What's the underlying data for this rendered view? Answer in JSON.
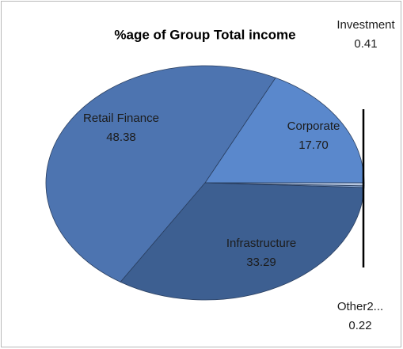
{
  "chart_data": {
    "type": "pie",
    "title": "%age of Group Total income",
    "categories": [
      "Corporate",
      "Retail Finance",
      "Infrastructure",
      "Other2...",
      "Investment"
    ],
    "values": [
      17.7,
      48.38,
      33.29,
      0.22,
      0.41
    ],
    "value_labels": [
      "17.70",
      "48.38",
      "33.29",
      "0.22",
      "0.41"
    ],
    "colors": [
      "#5a88cc",
      "#4d74b0",
      "#3d5f91",
      "#8aa6cf",
      "#b5c6e0"
    ]
  }
}
